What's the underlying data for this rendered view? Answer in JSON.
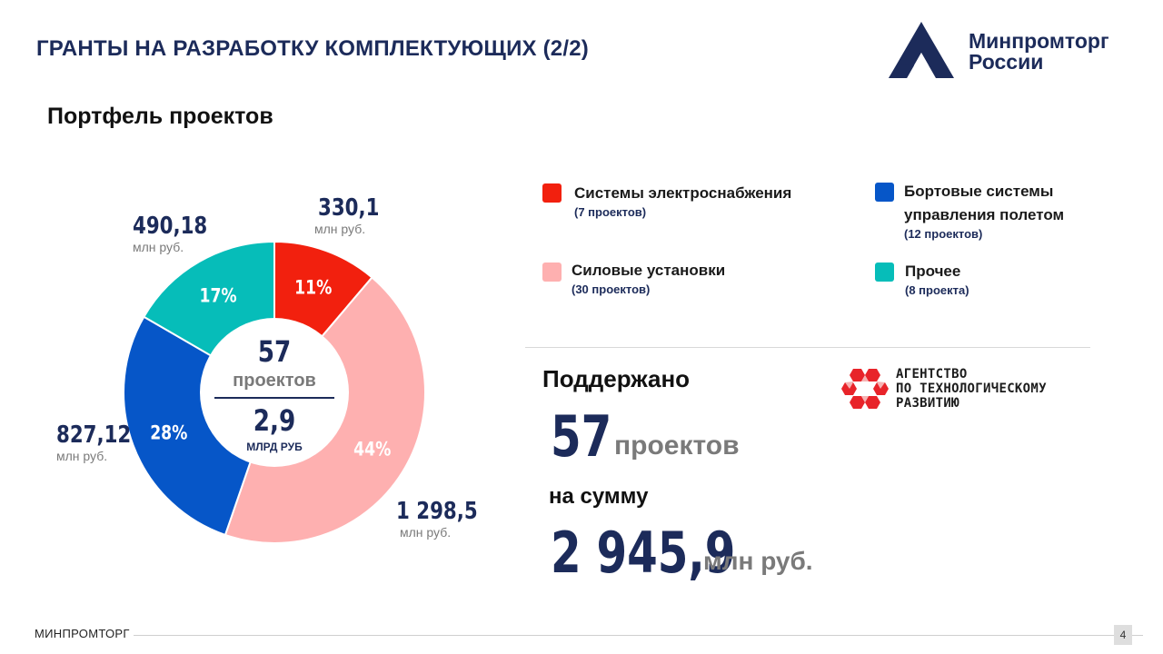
{
  "header": {
    "title": "ГРАНТЫ НА РАЗРАБОТКУ КОМПЛЕКТУЮЩИХ (2/2)",
    "subtitle": "Портфель проектов",
    "logo_line1": "Минпромторг",
    "logo_line2": "России"
  },
  "colors": {
    "navy": "#1c2b5a",
    "red": "#f2200e",
    "pink": "#feb0b0",
    "blue": "#0656c8",
    "teal": "#06bdb9"
  },
  "chart_data": {
    "type": "pie",
    "donut": true,
    "slices": [
      {
        "name": "Системы электроснабжения",
        "value": 330.1,
        "value_label": "330,1",
        "percent_label": "11%",
        "color": "#f2200e"
      },
      {
        "name": "Силовые установки",
        "value": 1298.5,
        "value_label": "1 298,5",
        "percent_label": "44%",
        "color": "#feb0b0"
      },
      {
        "name": "Бортовые системы управления полетом",
        "value": 827.12,
        "value_label": "827,12",
        "percent_label": "28%",
        "color": "#0656c8"
      },
      {
        "name": "Прочее",
        "value": 490.18,
        "value_label": "490,18",
        "percent_label": "17%",
        "color": "#06bdb9"
      }
    ],
    "unit": "млн руб.",
    "center_count": "57",
    "center_count_label": "проектов",
    "center_total": "2,9",
    "center_total_unit": "МЛРД РУБ"
  },
  "legend": [
    {
      "name": "Системы электроснабжения",
      "sub": "(7 проектов)",
      "color": "#f2200e"
    },
    {
      "name": "Бортовые системы управления полетом",
      "line1": "Бортовые системы",
      "line2": "управления полетом",
      "sub": "(12 проектов)",
      "color": "#0656c8"
    },
    {
      "name": "Силовые установки",
      "sub": "(30 проектов)",
      "color": "#feb0b0"
    },
    {
      "name": "Прочее",
      "sub": "(8 проекта)",
      "color": "#06bdb9"
    }
  ],
  "summary": {
    "supported_label": "Поддержано",
    "projects_count": "57",
    "projects_unit": "проектов",
    "sum_label": "на сумму",
    "sum_value": "2 945,9",
    "sum_unit": "млн руб."
  },
  "agency": {
    "line1": "АГЕНТСТВО",
    "line2": "ПО ТЕХНОЛОГИЧЕСКОМУ",
    "line3": "РАЗВИТИЮ"
  },
  "footer": {
    "brand": "МИНПРОМТОРГ",
    "page_number": "4"
  }
}
